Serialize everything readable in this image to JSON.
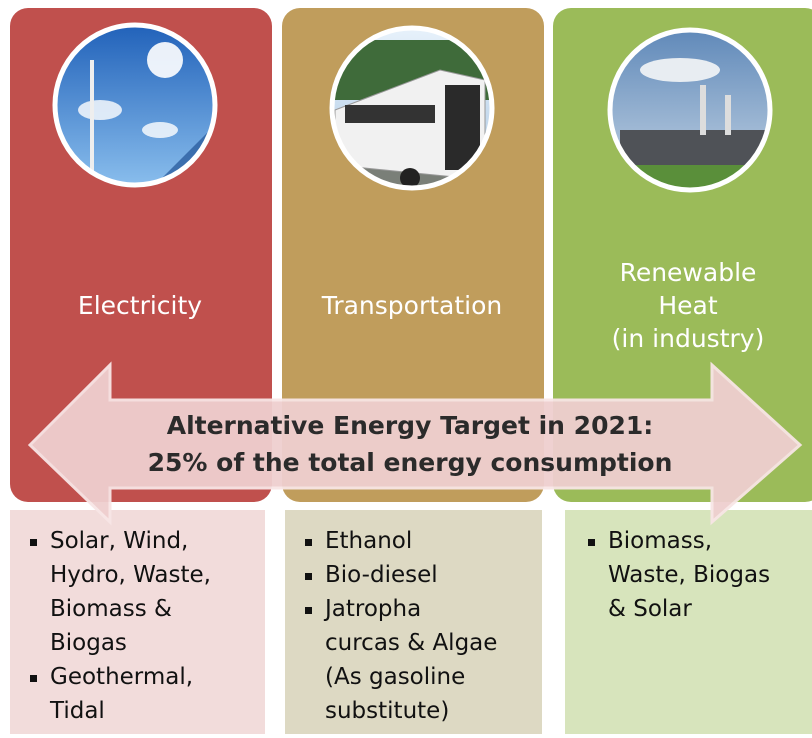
{
  "columns": [
    {
      "title": [
        "Electricity"
      ],
      "items": [
        [
          "Solar, Wind,",
          "Hydro, Waste,",
          "Biomass &",
          "Biogas"
        ],
        [
          "Geothermal,",
          "Tidal"
        ]
      ]
    },
    {
      "title": [
        "Transportation"
      ],
      "items": [
        [
          "Ethanol"
        ],
        [
          "Bio-diesel"
        ],
        [
          "Jatropha",
          "curcas & Algae",
          "(As gasoline",
          "substitute)"
        ]
      ]
    },
    {
      "title": [
        "Renewable",
        "Heat",
        "(in industry)"
      ],
      "items": [
        [
          "Biomass,",
          "Waste, Biogas",
          "& Solar"
        ]
      ]
    }
  ],
  "target": [
    "Alternative Energy Target in 2021:",
    "25% of the total energy consumption"
  ]
}
